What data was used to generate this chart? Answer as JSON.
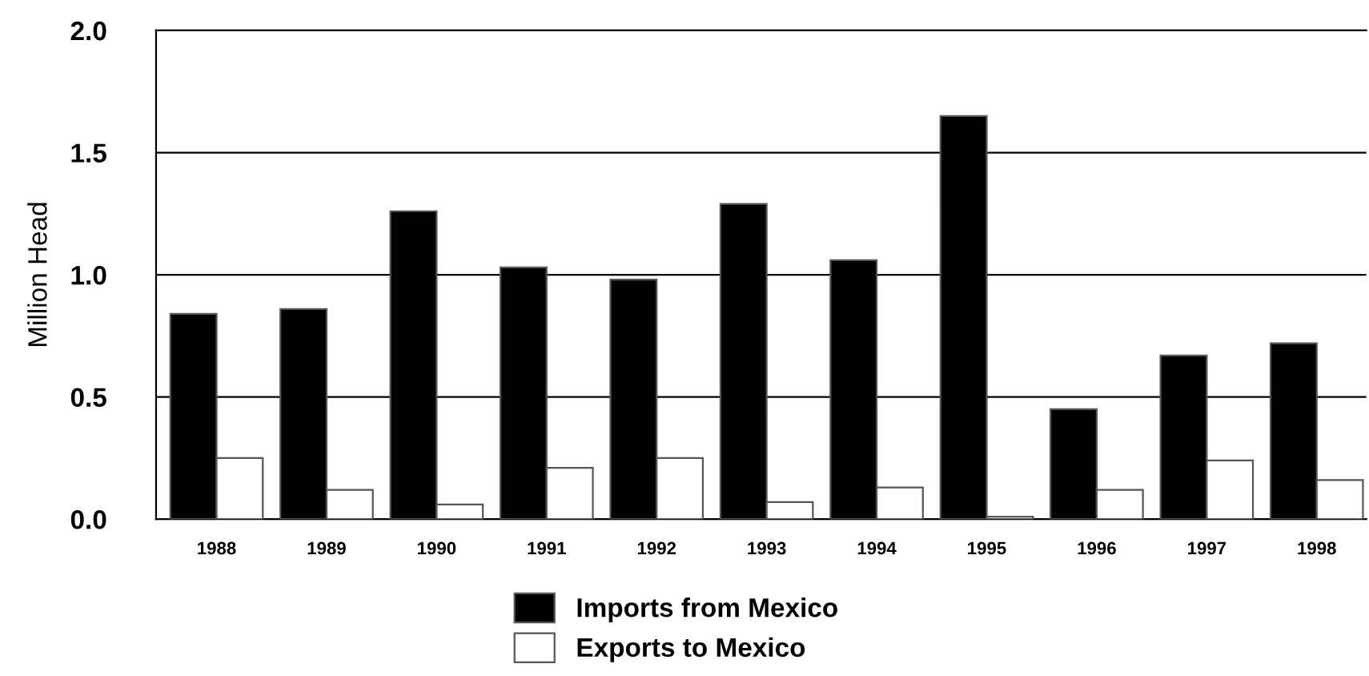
{
  "chart_data": {
    "type": "bar",
    "ylabel": "Million Head",
    "categories": [
      "1988",
      "1989",
      "1990",
      "1991",
      "1992",
      "1993",
      "1994",
      "1995",
      "1996",
      "1997",
      "1998"
    ],
    "series": [
      {
        "name": "Imports from Mexico",
        "color": "#000000",
        "values": [
          0.84,
          0.86,
          1.26,
          1.03,
          0.98,
          1.29,
          1.06,
          1.65,
          0.45,
          0.67,
          0.72
        ]
      },
      {
        "name": "Exports to Mexico",
        "color": "#ffffff",
        "values": [
          0.25,
          0.12,
          0.06,
          0.21,
          0.25,
          0.07,
          0.13,
          0.01,
          0.12,
          0.24,
          0.16
        ]
      }
    ],
    "ylim": [
      0,
      2.0
    ],
    "yticks": [
      {
        "value": 0,
        "label": "0.0"
      },
      {
        "value": 0.5,
        "label": "0.5"
      },
      {
        "value": 1,
        "label": "1.0"
      },
      {
        "value": 1.5,
        "label": "1.5"
      },
      {
        "value": 2,
        "label": "2.0"
      }
    ],
    "grid": "y",
    "legend": "bottom"
  }
}
